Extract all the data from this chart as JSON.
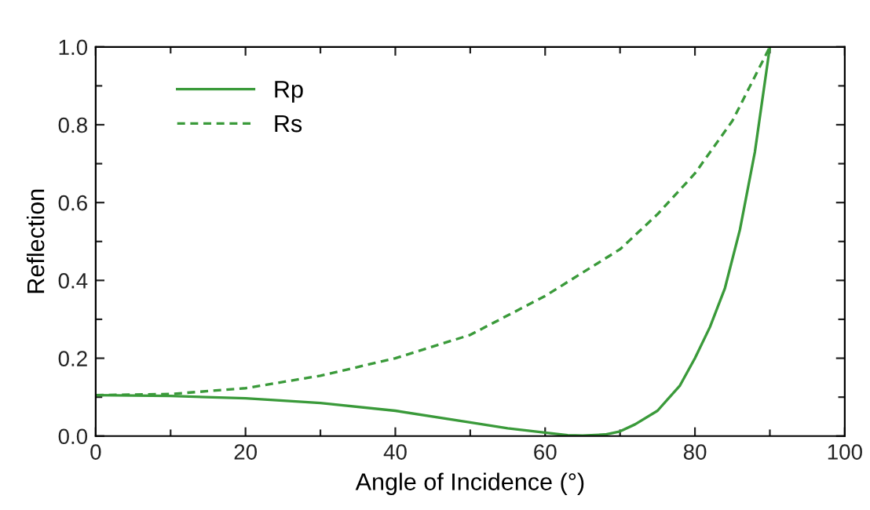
{
  "chart_data": {
    "type": "line",
    "xlabel": "Angle of Incidence (°)",
    "ylabel": "Reflection",
    "xlim": [
      0,
      100
    ],
    "ylim": [
      0,
      1.0
    ],
    "xticks": [
      0,
      {
        "value": 10,
        "label": null
      },
      20,
      {
        "value": 30,
        "label": null
      },
      40,
      {
        "value": 50,
        "label": null
      },
      60,
      {
        "value": 70,
        "label": null
      },
      80,
      {
        "value": 90,
        "label": null
      },
      100
    ],
    "yticks": [
      {
        "value": 0,
        "label": "0.0"
      },
      {
        "value": 0.1,
        "label": null
      },
      0.2,
      {
        "value": 0.3,
        "label": null
      },
      0.4,
      {
        "value": 0.5,
        "label": null
      },
      0.6,
      {
        "value": 0.7,
        "label": null
      },
      0.8,
      {
        "value": 0.9,
        "label": null
      },
      {
        "value": 1.0,
        "label": "1.0"
      }
    ],
    "grid": false,
    "legend": "top left",
    "marker": "none",
    "series": [
      {
        "name": "Rp",
        "color": "#3a9a3a",
        "line_style": "solid",
        "x": [
          0,
          10,
          20,
          30,
          40,
          50,
          55,
          60,
          63,
          65,
          68,
          70,
          72,
          75,
          78,
          80,
          82,
          84,
          86,
          88,
          90
        ],
        "values": [
          0.105,
          0.103,
          0.097,
          0.085,
          0.065,
          0.035,
          0.02,
          0.009,
          0.002,
          0.001,
          0.004,
          0.012,
          0.03,
          0.065,
          0.13,
          0.2,
          0.28,
          0.38,
          0.53,
          0.73,
          1.0
        ]
      },
      {
        "name": "Rs",
        "color": "#3a9a3a",
        "line_style": "dashed",
        "x": [
          0,
          10,
          20,
          30,
          40,
          50,
          60,
          65,
          70,
          75,
          80,
          85,
          90
        ],
        "values": [
          0.105,
          0.108,
          0.123,
          0.155,
          0.2,
          0.26,
          0.36,
          0.42,
          0.48,
          0.57,
          0.675,
          0.81,
          1.0
        ]
      }
    ]
  }
}
